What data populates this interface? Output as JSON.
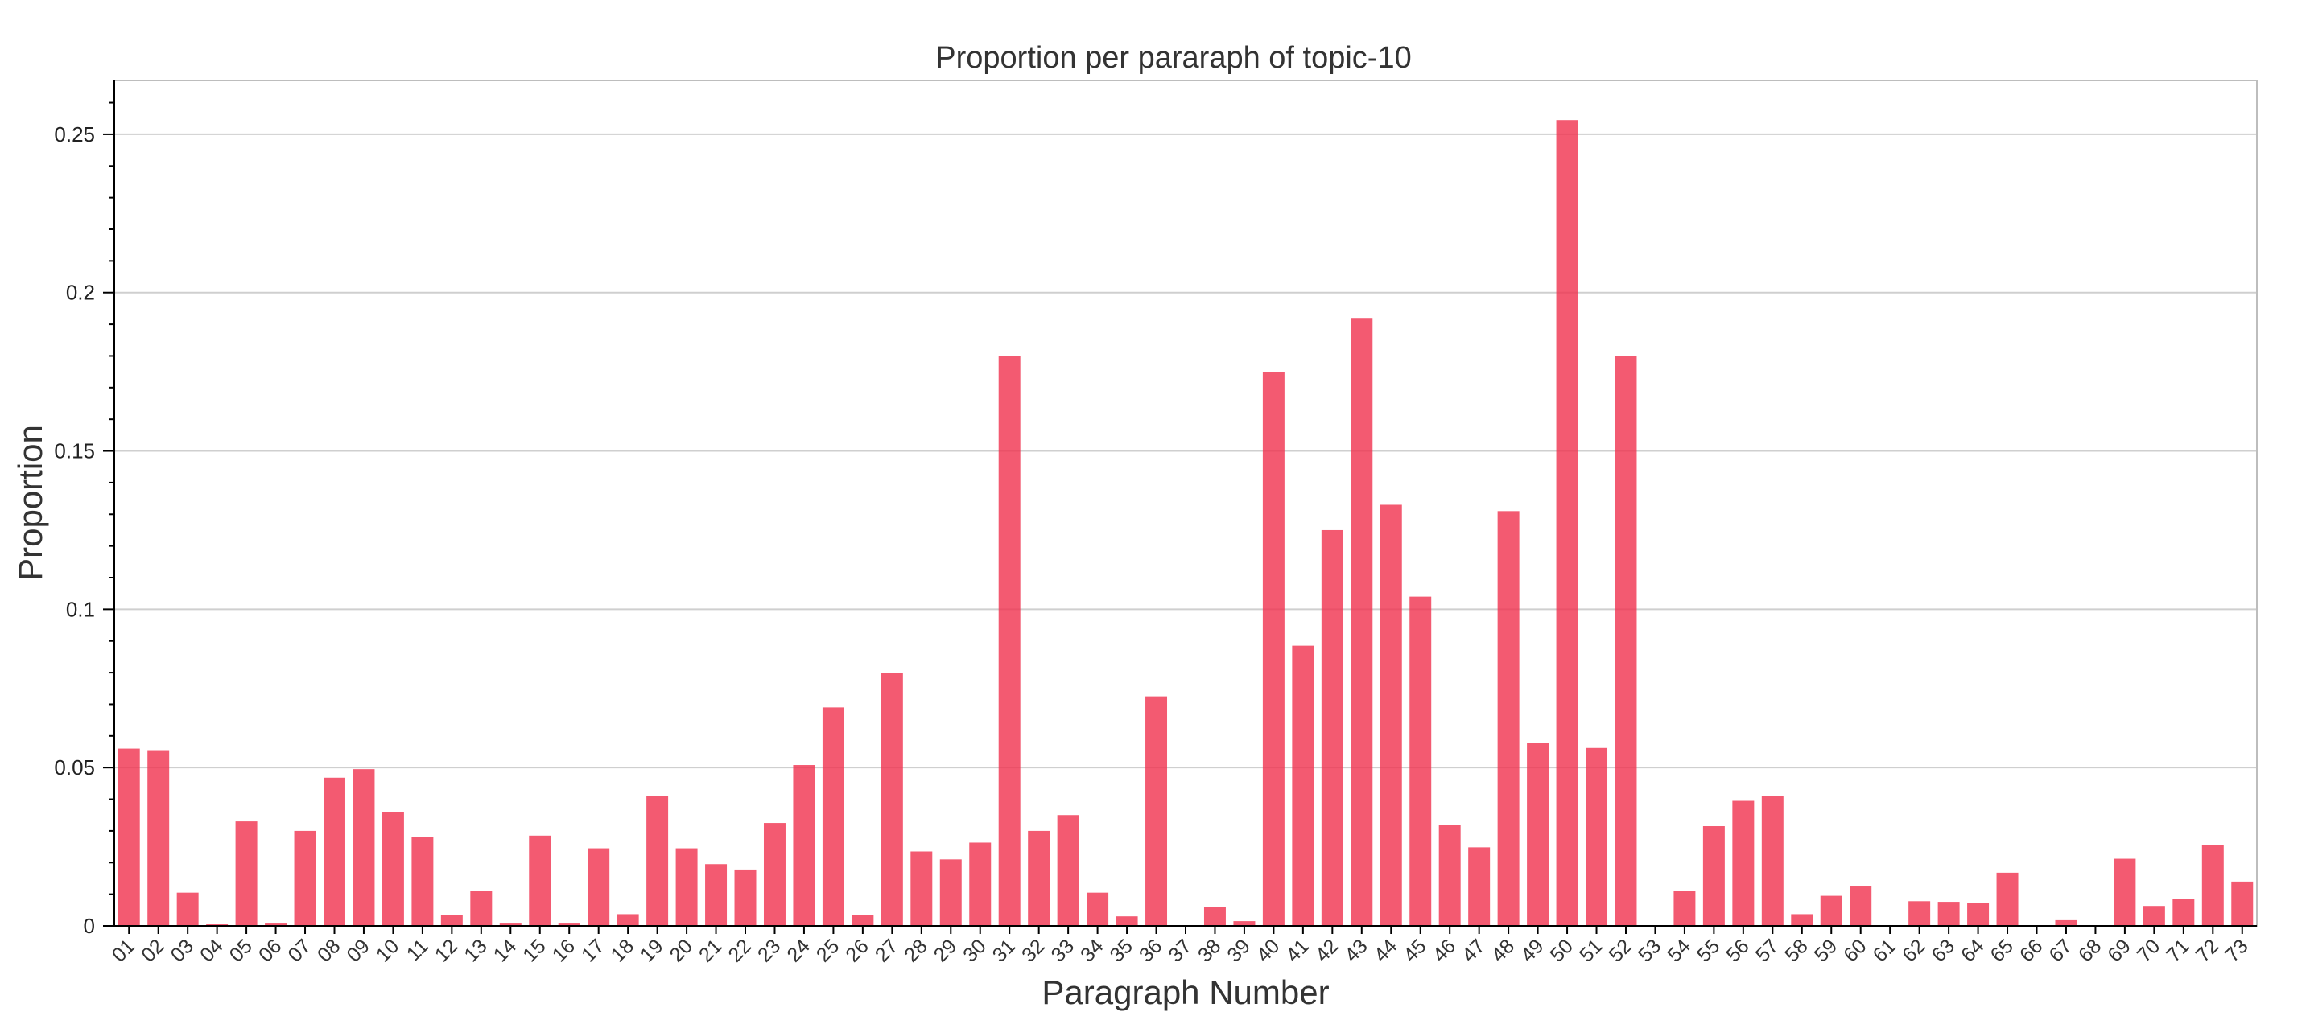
{
  "chart_data": {
    "type": "bar",
    "title": "Proportion per pararaph of topic-10",
    "xlabel": "Paragraph Number",
    "ylabel": "Proportion",
    "ylim": [
      0,
      0.267
    ],
    "yticks": [
      0,
      0.05,
      0.1,
      0.15,
      0.2,
      0.25
    ],
    "ytick_labels": [
      "0",
      "0.05",
      "0.1",
      "0.15",
      "0.2",
      "0.25"
    ],
    "grid": true,
    "color": "#f0314d",
    "categories": [
      "01",
      "02",
      "03",
      "04",
      "05",
      "06",
      "07",
      "08",
      "09",
      "10",
      "11",
      "12",
      "13",
      "14",
      "15",
      "16",
      "17",
      "18",
      "19",
      "20",
      "21",
      "22",
      "23",
      "24",
      "25",
      "26",
      "27",
      "28",
      "29",
      "30",
      "31",
      "32",
      "33",
      "34",
      "35",
      "36",
      "37",
      "38",
      "39",
      "40",
      "41",
      "42",
      "43",
      "44",
      "45",
      "46",
      "47",
      "48",
      "49",
      "50",
      "51",
      "52",
      "53",
      "54",
      "55",
      "56",
      "57",
      "58",
      "59",
      "60",
      "61",
      "62",
      "63",
      "64",
      "65",
      "66",
      "67",
      "68",
      "69",
      "70",
      "71",
      "72",
      "73"
    ],
    "values": [
      0.056,
      0.0555,
      0.0105,
      0.0005,
      0.033,
      0.001,
      0.03,
      0.0468,
      0.0495,
      0.036,
      0.028,
      0.0035,
      0.011,
      0.001,
      0.0285,
      0.001,
      0.0245,
      0.0037,
      0.041,
      0.0245,
      0.0195,
      0.0178,
      0.0325,
      0.0508,
      0.069,
      0.0035,
      0.08,
      0.0235,
      0.021,
      0.0263,
      0.18,
      0.03,
      0.035,
      0.0105,
      0.003,
      0.0725,
      0.0,
      0.006,
      0.0015,
      0.175,
      0.0885,
      0.125,
      0.192,
      0.133,
      0.104,
      0.0318,
      0.0248,
      0.131,
      0.0578,
      0.2545,
      0.0562,
      0.18,
      0.0,
      0.011,
      0.0315,
      0.0395,
      0.041,
      0.0037,
      0.0095,
      0.0127,
      0.0,
      0.0078,
      0.0076,
      0.0072,
      0.0168,
      0.0,
      0.0018,
      0.0,
      0.0212,
      0.0063,
      0.0085,
      0.0255,
      0.014
    ]
  }
}
